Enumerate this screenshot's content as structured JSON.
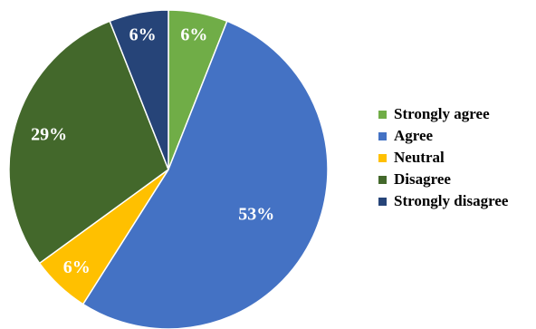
{
  "chart_data": {
    "type": "pie",
    "title": "",
    "start_angle_deg": 0,
    "direction": "clockwise",
    "slices": [
      {
        "label": "Strongly agree",
        "value": 6,
        "display": "6%",
        "color": "#70ad47"
      },
      {
        "label": "Agree",
        "value": 53,
        "display": "53%",
        "color": "#4472c4"
      },
      {
        "label": "Neutral",
        "value": 6,
        "display": "6%",
        "color": "#ffc000"
      },
      {
        "label": "Disagree",
        "value": 29,
        "display": "29%",
        "color": "#43682b"
      },
      {
        "label": "Strongly disagree",
        "value": 6,
        "display": "6%",
        "color": "#264478"
      }
    ],
    "legend_position": "right"
  }
}
